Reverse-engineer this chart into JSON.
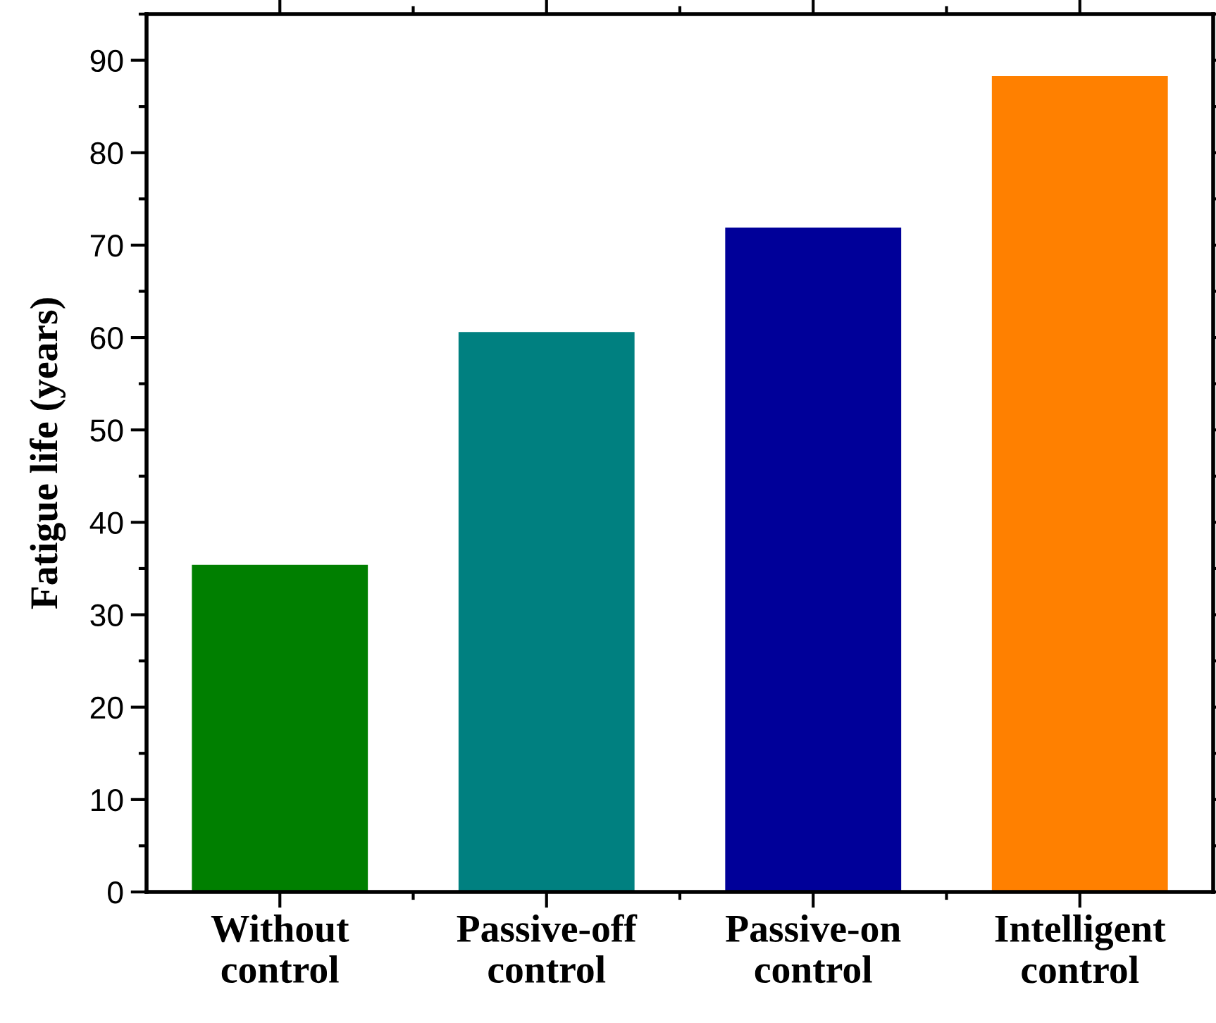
{
  "chart_data": {
    "type": "bar",
    "ylabel": "Fatigue life (years)",
    "categories": [
      "Without\ncontrol",
      "Passive-off\ncontrol",
      "Passive-on\ncontrol",
      "Intelligent\ncontrol"
    ],
    "values": [
      35.4,
      60.6,
      71.9,
      88.3
    ],
    "colors": [
      "#007f00",
      "#008080",
      "#000099",
      "#ff8000"
    ],
    "ylim": [
      0,
      95
    ],
    "yticks": [
      0,
      10,
      20,
      30,
      40,
      50,
      60,
      70,
      80,
      90
    ],
    "grid": false,
    "legend": false
  }
}
